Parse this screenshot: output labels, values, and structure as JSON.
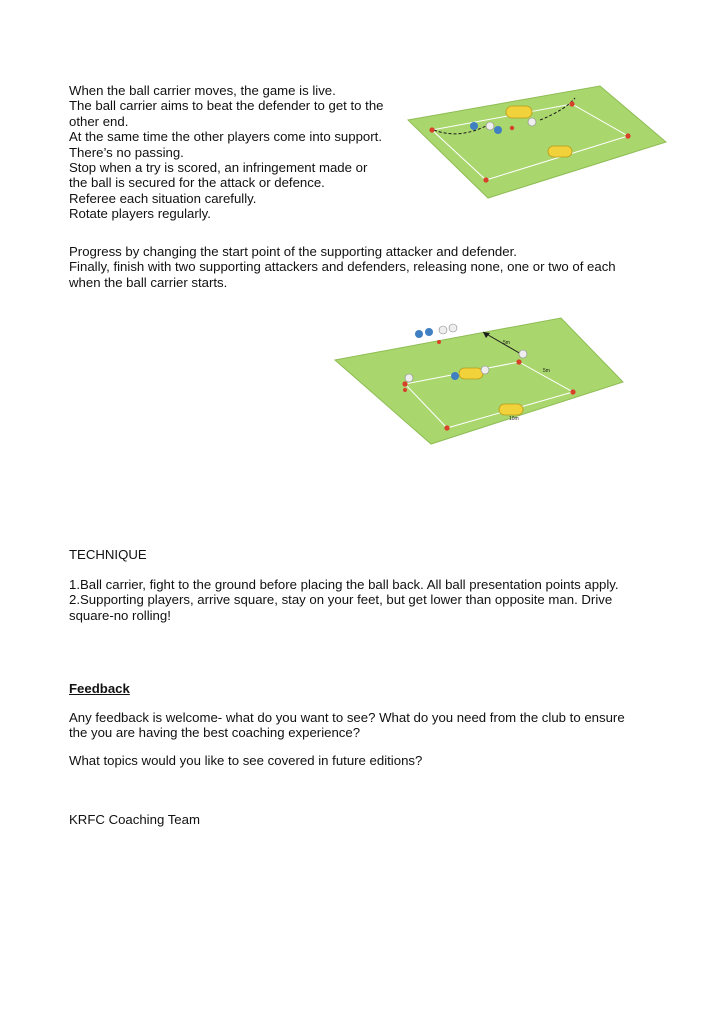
{
  "intro": [
    "When the ball carrier moves, the game is live.",
    "The ball carrier aims to beat the defender to get to the",
    "other end.",
    "At the same time the other players come into support.",
    "There’s no passing.",
    "Stop when a try is scored, an infringement made or",
    "the ball is secured for the attack or defence.",
    "Referee each situation carefully.",
    "Rotate players regularly."
  ],
  "progress": [
    "Progress by changing the start point of the supporting attacker and defender.",
    "Finally, finish with two supporting attackers and defenders, releasing none, one or two of each",
    "when the ball carrier starts."
  ],
  "technique": {
    "heading": "TECHNIQUE",
    "points": [
      "1.Ball carrier, fight to the ground before placing the ball back. All ball presentation points apply.",
      "2.Supporting players, arrive square, stay on your feet, but get lower than opposite man. Drive",
      "square-no rolling!"
    ]
  },
  "feedback": {
    "heading": "Feedback",
    "body": [
      "Any feedback is welcome- what do you want to see? What do you need from the club to ensure",
      "the you are having the best coaching experience?"
    ],
    "question": "What topics would you like to see covered in future editions?"
  },
  "signoff": "KRFC Coaching Team",
  "diagram2_labels": {
    "label_a": "5m",
    "label_b": "5m",
    "label_c": "10m"
  },
  "colors": {
    "pitch": "#a9d66d",
    "pitch_edge": "#8fbd55",
    "cone": "#d9402a",
    "tackle_bag": "#f2d23a",
    "attacker": "#3f7fc2",
    "defender": "#eeeeee"
  }
}
